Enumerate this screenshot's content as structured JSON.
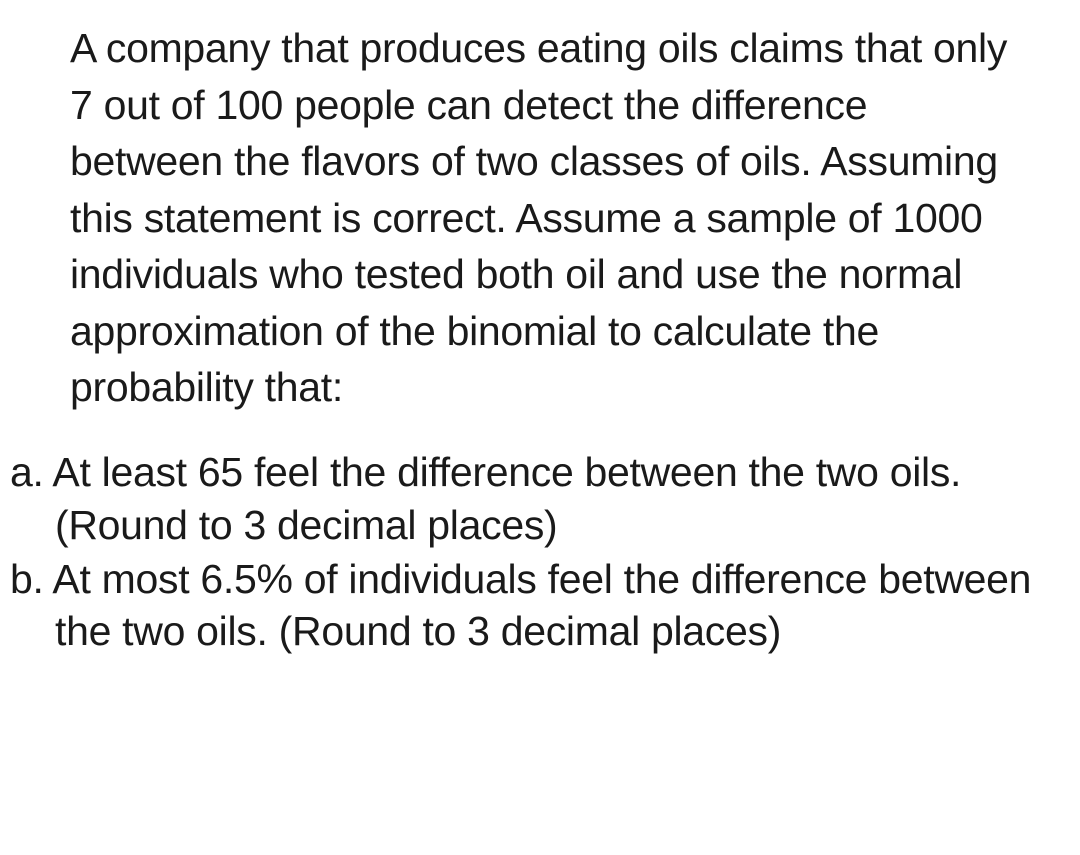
{
  "problem": {
    "statement": "A company that produces eating oils claims that only 7 out of 100 people can detect the difference between the flavors of two classes of oils. Assuming this statement is correct. Assume a sample of 1000 individuals who tested both oil and use the normal approximation of the binomial to calculate the probability that:",
    "questions": {
      "a": "a. At least 65 feel the difference between the two oils. (Round to 3 decimal places)",
      "b": "b. At most 6.5% of individuals feel the difference between the two oils. (Round to 3 decimal places)"
    }
  }
}
